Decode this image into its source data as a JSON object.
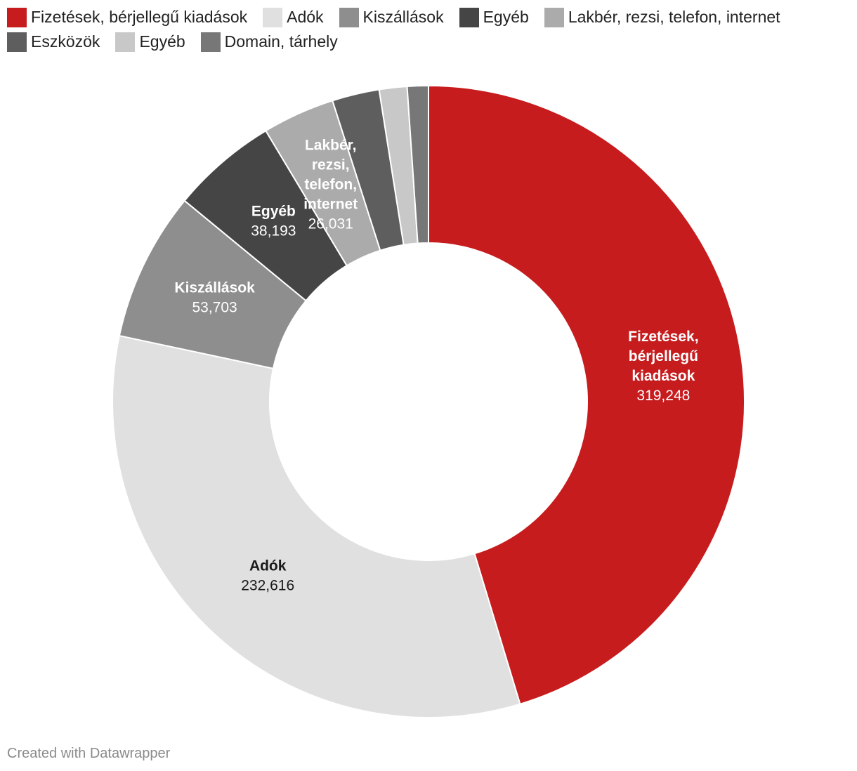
{
  "legend": [
    {
      "label": "Fizetések, bérjellegű kiadások",
      "color": "#c71c1e"
    },
    {
      "label": "Adók",
      "color": "#e0e0e0"
    },
    {
      "label": "Kiszállások",
      "color": "#8e8e8e"
    },
    {
      "label": "Egyéb",
      "color": "#454545"
    },
    {
      "label": "Lakbér, rezsi, telefon, internet",
      "color": "#ababab"
    },
    {
      "label": "Eszközök",
      "color": "#5e5e5e"
    },
    {
      "label": "Egyéb",
      "color": "#c8c8c8"
    },
    {
      "label": "Domain, tárhely",
      "color": "#777777"
    }
  ],
  "chart_data": {
    "type": "pie",
    "donut": true,
    "slices": [
      {
        "label": "Fizetések, bérjellegű kiadások",
        "value": 319248,
        "display": "319,248",
        "color": "#c71c1e",
        "label_lines": [
          "Fizetések,",
          "bérjellegű",
          "kiadások"
        ],
        "value_shown": true,
        "dark_text": false
      },
      {
        "label": "Adók",
        "value": 232616,
        "display": "232,616",
        "color": "#e0e0e0",
        "label_lines": [
          "Adók"
        ],
        "value_shown": true,
        "dark_text": true
      },
      {
        "label": "Kiszállások",
        "value": 53703,
        "display": "53,703",
        "color": "#8e8e8e",
        "label_lines": [
          "Kiszállások"
        ],
        "value_shown": true,
        "dark_text": false
      },
      {
        "label": "Egyéb",
        "value": 38193,
        "display": "38,193",
        "color": "#454545",
        "label_lines": [
          "Egyéb"
        ],
        "value_shown": true,
        "dark_text": false
      },
      {
        "label": "Lakbér, rezsi, telefon, internet",
        "value": 26031,
        "display": "26,031",
        "color": "#ababab",
        "label_lines": [
          "Lakbér,",
          "rezsi,",
          "telefon,",
          "internet"
        ],
        "value_shown": true,
        "dark_text": false
      },
      {
        "label": "Eszközök",
        "value": 17000,
        "color": "#5e5e5e",
        "label_lines": [],
        "value_shown": false
      },
      {
        "label": "Egyéb",
        "value": 10000,
        "color": "#c8c8c8",
        "label_lines": [],
        "value_shown": false
      },
      {
        "label": "Domain, tárhely",
        "value": 7600,
        "color": "#777777",
        "label_lines": [],
        "value_shown": false
      }
    ],
    "start": "12 o'clock",
    "direction": "clockwise",
    "legend_position": "top-left"
  },
  "credit": "Created with Datawrapper"
}
